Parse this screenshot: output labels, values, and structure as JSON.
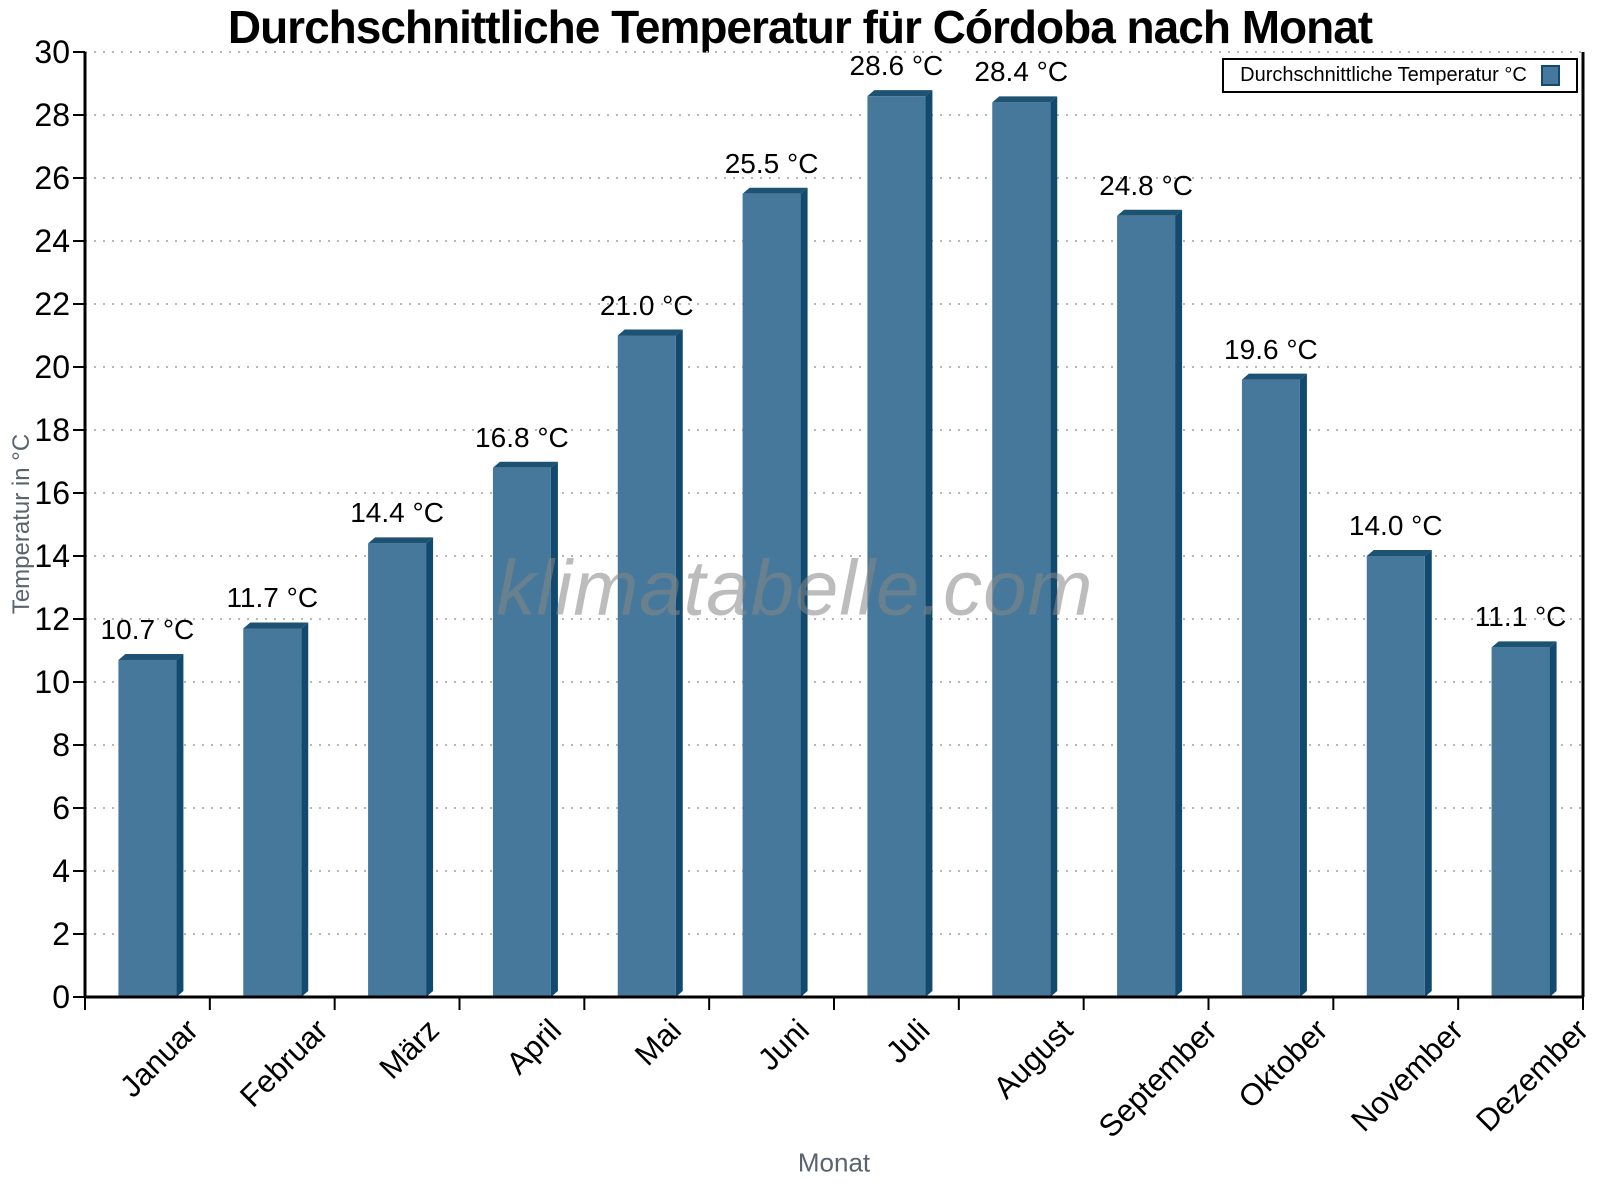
{
  "title": "Durchschnittliche Temperatur für Córdoba nach Monat",
  "legend": {
    "label": "Durchschnittliche Temperatur °C"
  },
  "watermark": "klimatabelle.com",
  "colors": {
    "bar_face": "#45789B",
    "bar_side": "#12496E",
    "bar_top": "#1D5273",
    "axis": "#000000",
    "grid": "#b8b8b8",
    "axis_title": "#5a646e"
  },
  "chart_data": {
    "type": "bar",
    "title": "Durchschnittliche Temperatur für Córdoba nach Monat",
    "xlabel": "Monat",
    "ylabel": "Temperatur in °C",
    "categories": [
      "Januar",
      "Februar",
      "März",
      "April",
      "Mai",
      "Juni",
      "Juli",
      "August",
      "September",
      "Oktober",
      "November",
      "Dezember"
    ],
    "values": [
      10.7,
      11.7,
      14.4,
      16.8,
      21.0,
      25.5,
      28.6,
      28.4,
      24.8,
      19.6,
      14.0,
      11.1
    ],
    "value_labels": [
      "10.7 °C",
      "11.7 °C",
      "14.4 °C",
      "16.8 °C",
      "21.0 °C",
      "25.5 °C",
      "28.6 °C",
      "28.4 °C",
      "24.8 °C",
      "19.6 °C",
      "14.0 °C",
      "11.1 °C"
    ],
    "ylim": [
      0,
      30
    ],
    "ytick_step": 2,
    "grid": "horizontal-dotted",
    "legend_position": "top-right",
    "series_name": "Durchschnittliche Temperatur °C"
  }
}
